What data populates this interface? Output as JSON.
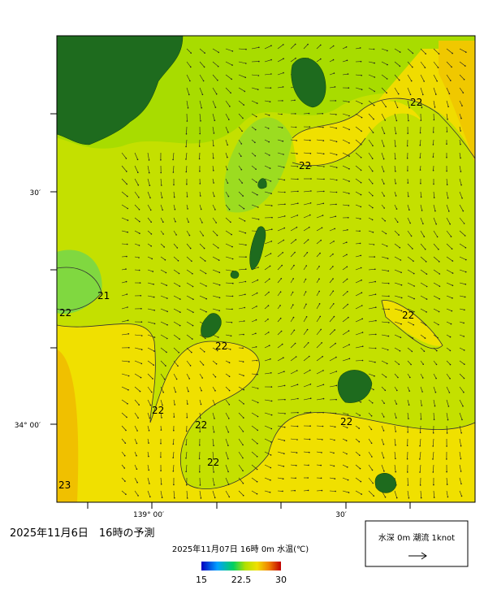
{
  "map": {
    "title": "2025年11月6日　16時の予測",
    "subtitle": "2025年11月07日 16時 0m 水温(℃)",
    "lat_labels": [
      "30′",
      "34° 00′"
    ],
    "lon_labels": [
      "139° 00′",
      "30′"
    ],
    "contour_labels": [
      "22",
      "22",
      "21",
      "22",
      "22",
      "22",
      "22",
      "22",
      "22",
      "22",
      "23"
    ],
    "colorbar": {
      "lim": [
        15,
        30
      ],
      "ticks": [
        15,
        22.5,
        30
      ]
    },
    "legend": "水深 0m 潮流 1knot"
  }
}
